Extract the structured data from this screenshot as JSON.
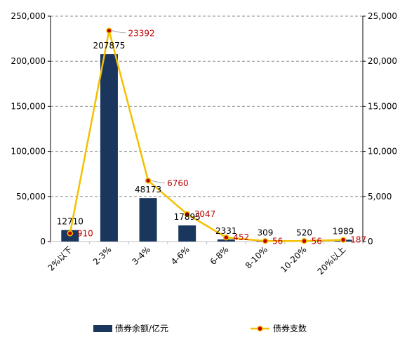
{
  "chart_data": {
    "type": "bar",
    "categories": [
      "2%以下",
      "2-3%",
      "3-4%",
      "4-6%",
      "6-8%",
      "8-10%",
      "10-20%",
      "20%以上"
    ],
    "series": [
      {
        "name": "债券余额/亿元",
        "type": "bar",
        "axis": "left",
        "values": [
          12710,
          207875,
          48173,
          17895,
          2331,
          309,
          520,
          1989
        ],
        "labels": [
          "12710",
          "207875",
          "48173",
          "17895",
          "2331",
          "309",
          "520",
          "1989"
        ],
        "color": "#1a365d"
      },
      {
        "name": "债券支数",
        "type": "line",
        "axis": "right",
        "values": [
          910,
          23392,
          6760,
          3047,
          452,
          56,
          56,
          187
        ],
        "labels": [
          "910",
          "23392",
          "6760",
          "3047",
          "452",
          "56",
          "56",
          "187"
        ],
        "color": "#f5c000",
        "marker_color": "#c00000"
      }
    ],
    "left_axis": {
      "ylim": [
        0,
        250000
      ],
      "ticks": [
        0,
        50000,
        100000,
        150000,
        200000,
        250000
      ],
      "tick_labels": [
        "0",
        "50,000",
        "100,000",
        "150,000",
        "200,000",
        "250,000"
      ]
    },
    "right_axis": {
      "ylim": [
        0,
        25000
      ],
      "ticks": [
        0,
        5000,
        10000,
        15000,
        20000,
        25000
      ],
      "tick_labels": [
        "0",
        "5,000",
        "10,000",
        "15,000",
        "20,000",
        "25,000"
      ]
    },
    "grid": true,
    "legend_position": "bottom"
  }
}
